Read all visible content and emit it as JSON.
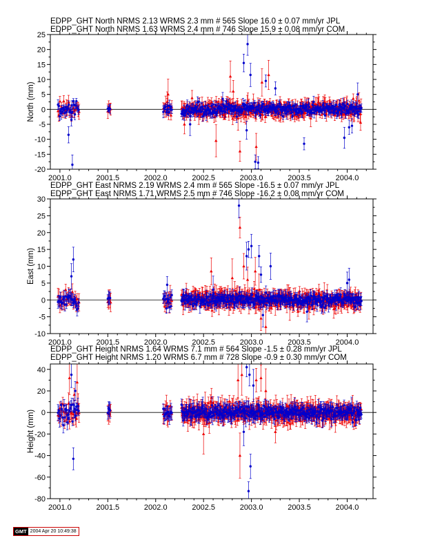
{
  "panels": [
    {
      "key": "north",
      "legend": [
        {
          "text": "EDPP_GHT North NRMS 2.13 WRMS  2.3 mm # 565 Slope   16.0 ±  0.07 mm/yr JPL",
          "color": "#0000cc"
        },
        {
          "text": "EDPP_GHT North NRMS 1.63 WRMS  2.4 mm # 746 Slope   15.9 ±  0.08 mm/yr COM",
          "color": "#ee0000"
        }
      ],
      "ylabel": "North (mm)",
      "ylim": [
        -20,
        25
      ],
      "yticks": [
        -20,
        -15,
        -10,
        -5,
        0,
        5,
        10,
        15,
        20,
        25
      ]
    },
    {
      "key": "east",
      "legend": [
        {
          "text": "EDPP_GHT East NRMS 2.19 WRMS  2.4 mm # 565 Slope  -16.5 ±  0.07 mm/yr JPL",
          "color": "#0000cc"
        },
        {
          "text": "EDPP_GHT East NRMS 1.71 WRMS  2.5 mm # 746 Slope  -16.2 ±  0.08 mm/yr COM",
          "color": "#ee0000"
        }
      ],
      "ylabel": "East (mm)",
      "ylim": [
        -10,
        30
      ],
      "yticks": [
        -10,
        -5,
        0,
        5,
        10,
        15,
        20,
        25,
        30
      ]
    },
    {
      "key": "height",
      "legend": [
        {
          "text": "EDPP_GHT Height NRMS 1.64 WRMS  7.1 mm # 564 Slope   -1.5 ±  0.28 mm/yr JPL",
          "color": "#0000cc"
        },
        {
          "text": "EDPP_GHT Height NRMS 1.20 WRMS  6.7 mm # 728 Slope   -0.9 ±  0.30 mm/yr COM",
          "color": "#ee0000"
        }
      ],
      "ylabel": "Height (mm)",
      "ylim": [
        -80,
        45
      ],
      "yticks": [
        -80,
        -60,
        -40,
        -20,
        0,
        20,
        40
      ]
    }
  ],
  "xaxis": {
    "xlim": [
      2000.9,
      2004.27
    ],
    "ticks": [
      2001.0,
      2001.5,
      2002.0,
      2002.5,
      2003.0,
      2003.5,
      2004.0
    ],
    "tick_labels": [
      "2001.0",
      "2001.5",
      "2002.0",
      "2002.5",
      "2003.0",
      "2003.5",
      "2004.0"
    ]
  },
  "colors": {
    "jpl": "#0000cc",
    "com": "#ee0000",
    "zero_line": "#000000"
  },
  "stamp": {
    "logo": "GMT",
    "timestamp": "2004 Apr 20 10:49:38"
  },
  "chart_data": [
    {
      "type": "scatter",
      "panel": "north",
      "xlabel": "",
      "ylabel": "North (mm)",
      "ylim": [
        -20,
        25
      ],
      "grid": false,
      "series": [
        {
          "name": "JPL",
          "color": "#0000cc",
          "marker": "dot",
          "sigma_typical": 1.3,
          "segments": [
            {
              "start": 2000.98,
              "end": 2001.2,
              "step": 0.008,
              "spread": 2.5
            },
            {
              "start": 2001.5,
              "end": 2001.53,
              "step": 0.008,
              "spread": 0.6
            },
            {
              "start": 2002.08,
              "end": 2002.17,
              "step": 0.008,
              "spread": 1.6
            },
            {
              "start": 2002.27,
              "end": 2004.15,
              "step": 0.006,
              "spread": 1.8
            }
          ],
          "outliers": [
            {
              "x": 2001.09,
              "y": -8.5
            },
            {
              "x": 2001.13,
              "y": -18.5
            },
            {
              "x": 2001.12,
              "y": -3.5
            },
            {
              "x": 2002.36,
              "y": -5.0
            },
            {
              "x": 2002.7,
              "y": 3.5
            },
            {
              "x": 2002.92,
              "y": 15.5
            },
            {
              "x": 2002.96,
              "y": 21.8
            },
            {
              "x": 2002.99,
              "y": 11.5
            },
            {
              "x": 2002.95,
              "y": -7.0
            },
            {
              "x": 2003.04,
              "y": -17.5
            },
            {
              "x": 2003.07,
              "y": -17.8
            },
            {
              "x": 2003.15,
              "y": 9.5
            },
            {
              "x": 2003.25,
              "y": 7.0
            },
            {
              "x": 2003.55,
              "y": -11.5
            },
            {
              "x": 2003.97,
              "y": -9.5
            },
            {
              "x": 2004.02,
              "y": -6.0
            },
            {
              "x": 2004.05,
              "y": -5.5
            },
            {
              "x": 2004.11,
              "y": 5.0
            }
          ]
        },
        {
          "name": "COM",
          "color": "#ee0000",
          "marker": "triangle",
          "sigma_typical": 1.8,
          "segments": [
            {
              "start": 2000.98,
              "end": 2001.2,
              "step": 0.01,
              "spread": 3.0
            },
            {
              "start": 2001.5,
              "end": 2001.53,
              "step": 0.01,
              "spread": 0.7
            },
            {
              "start": 2002.08,
              "end": 2002.17,
              "step": 0.008,
              "spread": 2.0
            },
            {
              "start": 2002.27,
              "end": 2004.15,
              "step": 0.0055,
              "spread": 2.2
            }
          ],
          "outliers": [
            {
              "x": 2002.13,
              "y": 5.0
            },
            {
              "x": 2002.12,
              "y": 2.5
            },
            {
              "x": 2002.3,
              "y": -5.0
            },
            {
              "x": 2002.45,
              "y": -2.0
            },
            {
              "x": 2002.63,
              "y": -10.5
            },
            {
              "x": 2002.78,
              "y": 11.0
            },
            {
              "x": 2002.81,
              "y": 6.0
            },
            {
              "x": 2002.88,
              "y": -14.0
            },
            {
              "x": 2002.86,
              "y": -3.0
            },
            {
              "x": 2003.02,
              "y": 1.5
            },
            {
              "x": 2003.05,
              "y": -12.5
            },
            {
              "x": 2003.11,
              "y": 9.0
            },
            {
              "x": 2003.18,
              "y": 11.5
            },
            {
              "x": 2003.3,
              "y": -1.0
            },
            {
              "x": 2003.62,
              "y": -3.0
            }
          ]
        }
      ]
    },
    {
      "type": "scatter",
      "panel": "east",
      "xlabel": "",
      "ylabel": "East (mm)",
      "ylim": [
        -10,
        30
      ],
      "grid": false,
      "series": [
        {
          "name": "JPL",
          "color": "#0000cc",
          "marker": "dot",
          "sigma_typical": 1.4,
          "segments": [
            {
              "start": 2000.98,
              "end": 2001.2,
              "step": 0.008,
              "spread": 2.3
            },
            {
              "start": 2001.5,
              "end": 2001.53,
              "step": 0.008,
              "spread": 0.8
            },
            {
              "start": 2002.08,
              "end": 2002.17,
              "step": 0.008,
              "spread": 1.8
            },
            {
              "start": 2002.27,
              "end": 2004.15,
              "step": 0.006,
              "spread": 1.6
            }
          ],
          "outliers": [
            {
              "x": 2001.14,
              "y": 12.0
            },
            {
              "x": 2001.12,
              "y": 7.0
            },
            {
              "x": 2002.12,
              "y": 4.5
            },
            {
              "x": 2002.6,
              "y": 3.0
            },
            {
              "x": 2002.87,
              "y": 28.0
            },
            {
              "x": 2002.95,
              "y": 13.0
            },
            {
              "x": 2002.97,
              "y": 15.0
            },
            {
              "x": 2003.0,
              "y": 16.0
            },
            {
              "x": 2003.08,
              "y": 13.0
            },
            {
              "x": 2003.1,
              "y": 7.5
            },
            {
              "x": 2003.2,
              "y": 10.0
            },
            {
              "x": 2003.12,
              "y": -4.5
            },
            {
              "x": 2003.58,
              "y": -3.5
            },
            {
              "x": 2004.0,
              "y": 5.0
            },
            {
              "x": 2004.02,
              "y": 6.0
            }
          ]
        },
        {
          "name": "COM",
          "color": "#ee0000",
          "marker": "triangle",
          "sigma_typical": 2.0,
          "segments": [
            {
              "start": 2000.98,
              "end": 2001.2,
              "step": 0.01,
              "spread": 2.6
            },
            {
              "start": 2001.5,
              "end": 2001.53,
              "step": 0.01,
              "spread": 0.9
            },
            {
              "start": 2002.08,
              "end": 2002.17,
              "step": 0.008,
              "spread": 2.1
            },
            {
              "start": 2002.27,
              "end": 2004.15,
              "step": 0.0055,
              "spread": 1.9
            }
          ],
          "outliers": [
            {
              "x": 2002.58,
              "y": 8.5
            },
            {
              "x": 2002.8,
              "y": 6.5
            },
            {
              "x": 2002.88,
              "y": 21.5
            },
            {
              "x": 2002.92,
              "y": 10.0
            },
            {
              "x": 2002.96,
              "y": 6.0
            },
            {
              "x": 2003.04,
              "y": 8.5
            },
            {
              "x": 2003.08,
              "y": 3.0
            },
            {
              "x": 2003.1,
              "y": -5.5
            },
            {
              "x": 2003.15,
              "y": -8.0
            },
            {
              "x": 2003.4,
              "y": -2.0
            },
            {
              "x": 2003.6,
              "y": -2.5
            }
          ]
        }
      ]
    },
    {
      "type": "scatter",
      "panel": "height",
      "xlabel": "",
      "ylabel": "Height (mm)",
      "ylim": [
        -80,
        45
      ],
      "grid": false,
      "series": [
        {
          "name": "JPL",
          "color": "#0000cc",
          "marker": "dot",
          "sigma_typical": 5.5,
          "segments": [
            {
              "start": 2000.98,
              "end": 2001.2,
              "step": 0.008,
              "spread": 9.0
            },
            {
              "start": 2001.5,
              "end": 2001.53,
              "step": 0.008,
              "spread": 3.0
            },
            {
              "start": 2002.08,
              "end": 2002.17,
              "step": 0.008,
              "spread": 5.0
            },
            {
              "start": 2002.27,
              "end": 2004.15,
              "step": 0.006,
              "spread": 5.5
            }
          ],
          "outliers": [
            {
              "x": 2001.12,
              "y": 35.0
            },
            {
              "x": 2001.14,
              "y": -43.0
            },
            {
              "x": 2001.16,
              "y": 20.0
            },
            {
              "x": 2002.95,
              "y": 42.0
            },
            {
              "x": 2002.98,
              "y": 35.0
            },
            {
              "x": 2002.99,
              "y": -50.0
            },
            {
              "x": 2002.97,
              "y": -73.0
            },
            {
              "x": 2003.02,
              "y": 25.0
            },
            {
              "x": 2002.92,
              "y": -18.0
            }
          ]
        },
        {
          "name": "COM",
          "color": "#ee0000",
          "marker": "triangle",
          "sigma_typical": 7.0,
          "segments": [
            {
              "start": 2000.98,
              "end": 2001.2,
              "step": 0.01,
              "spread": 11.0
            },
            {
              "start": 2001.5,
              "end": 2001.53,
              "step": 0.01,
              "spread": 3.5
            },
            {
              "start": 2002.08,
              "end": 2002.17,
              "step": 0.008,
              "spread": 6.0
            },
            {
              "start": 2002.27,
              "end": 2004.15,
              "step": 0.0055,
              "spread": 6.5
            }
          ],
          "outliers": [
            {
              "x": 2001.1,
              "y": 32.0
            },
            {
              "x": 2001.18,
              "y": 28.0
            },
            {
              "x": 2002.88,
              "y": -40.0
            },
            {
              "x": 2002.9,
              "y": 35.0
            },
            {
              "x": 2002.86,
              "y": 30.0
            },
            {
              "x": 2003.05,
              "y": 30.0
            },
            {
              "x": 2003.1,
              "y": 32.0
            },
            {
              "x": 2003.15,
              "y": 20.0
            },
            {
              "x": 2003.25,
              "y": -18.0
            },
            {
              "x": 2002.5,
              "y": -20.0
            }
          ]
        }
      ]
    }
  ]
}
